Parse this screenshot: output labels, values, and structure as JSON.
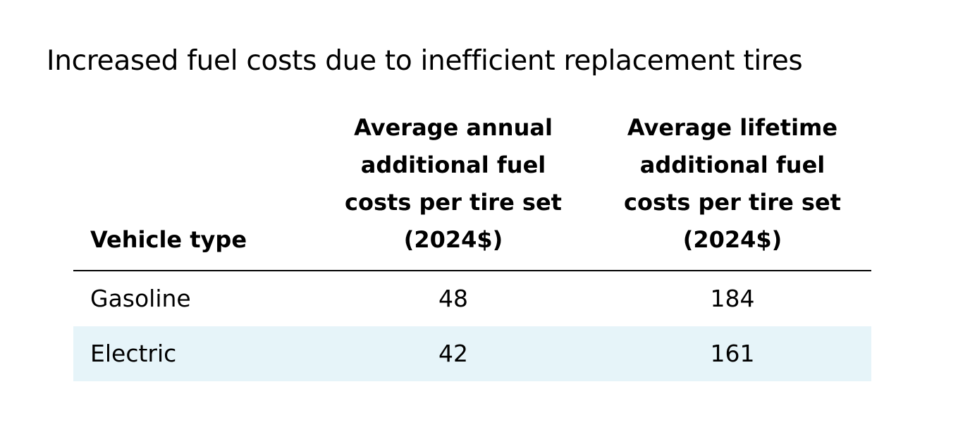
{
  "chart_data": {
    "type": "table",
    "title": "Increased fuel costs due to inefficient replacement tires",
    "columns": [
      {
        "lines": [
          "Vehicle type"
        ]
      },
      {
        "lines": [
          "Average annual",
          "additional fuel",
          "costs per tire set",
          "(2024$)"
        ]
      },
      {
        "lines": [
          "Average lifetime",
          "additional fuel",
          "costs per tire set",
          "(2024$)"
        ]
      }
    ],
    "rows": [
      {
        "cells": [
          "Gasoline",
          "48",
          "184"
        ]
      },
      {
        "cells": [
          "Electric",
          "42",
          "161"
        ]
      }
    ],
    "colors": {
      "alt_row_background": "#e6f4f9",
      "header_rule": "#000000"
    }
  }
}
